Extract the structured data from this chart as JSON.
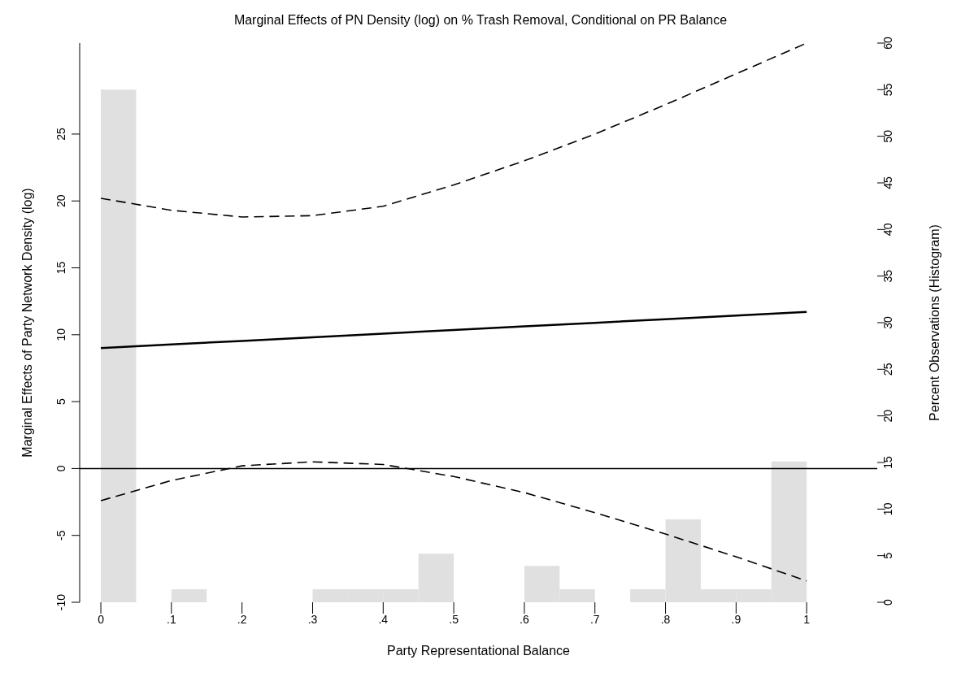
{
  "chart_data": {
    "type": "line",
    "title": "Marginal Effects of PN Density (log) on % Trash Removal, Conditional on PR Balance",
    "xlabel": "Party Representational Balance",
    "ylabel": "Marginal Effects of Party Network Density (log)",
    "y2label": "Percent Observations (Histogram)",
    "x": [
      0,
      0.1,
      0.2,
      0.3,
      0.4,
      0.5,
      0.6,
      0.7,
      0.8,
      0.9,
      1
    ],
    "series": [
      {
        "color": "#000000",
        "line_style": "solid",
        "values": [
          9.0,
          9.27,
          9.54,
          9.81,
          10.08,
          10.35,
          10.62,
          10.89,
          11.16,
          11.43,
          11.7
        ]
      },
      {
        "color": "#000000",
        "line_style": "dashed",
        "values": [
          20.2,
          19.3,
          18.8,
          18.9,
          19.6,
          21.2,
          23.0,
          25.0,
          27.2,
          29.5,
          31.8
        ]
      },
      {
        "color": "#000000",
        "line_style": "dashed",
        "values": [
          -2.4,
          -0.9,
          0.2,
          0.5,
          0.3,
          -0.6,
          -1.8,
          -3.3,
          -4.9,
          -6.6,
          -8.4
        ]
      },
      {
        "type": "histogram",
        "axis": "y2",
        "color": "#e0e0e0",
        "bins": [
          0,
          0.05,
          0.1,
          0.15,
          0.2,
          0.25,
          0.3,
          0.35,
          0.4,
          0.45,
          0.5,
          0.55,
          0.6,
          0.65,
          0.7,
          0.75,
          0.8,
          0.85,
          0.9,
          0.95,
          1
        ],
        "values": [
          55,
          0,
          1.4,
          0,
          0,
          0,
          1.4,
          1.4,
          1.4,
          5.2,
          0,
          0,
          3.9,
          1.4,
          0,
          1.4,
          8.9,
          1.4,
          1.4,
          15.1
        ]
      }
    ],
    "ref_lines": [
      {
        "axis": "y",
        "value": 0,
        "color": "#000000"
      }
    ],
    "xlim": [
      -0.03,
      1.1
    ],
    "xticks": [
      0,
      {
        "value": 0.1,
        "label": ".1"
      },
      {
        "value": 0.2,
        "label": ".2"
      },
      {
        "value": 0.3,
        "label": ".3"
      },
      {
        "value": 0.4,
        "label": ".4"
      },
      {
        "value": 0.5,
        "label": ".5"
      },
      {
        "value": 0.6,
        "label": ".6"
      },
      {
        "value": 0.7,
        "label": ".7"
      },
      {
        "value": 0.8,
        "label": ".8"
      },
      {
        "value": 0.9,
        "label": ".9"
      },
      1
    ],
    "ylim": [
      -10,
      31.8
    ],
    "yticks": [
      -10,
      -5,
      0,
      5,
      10,
      15,
      20,
      25
    ],
    "y2lim": [
      0,
      60
    ],
    "y2ticks": [
      0,
      5,
      10,
      15,
      20,
      25,
      30,
      35,
      40,
      45,
      50,
      55,
      60
    ],
    "grid": false,
    "legend": false
  }
}
